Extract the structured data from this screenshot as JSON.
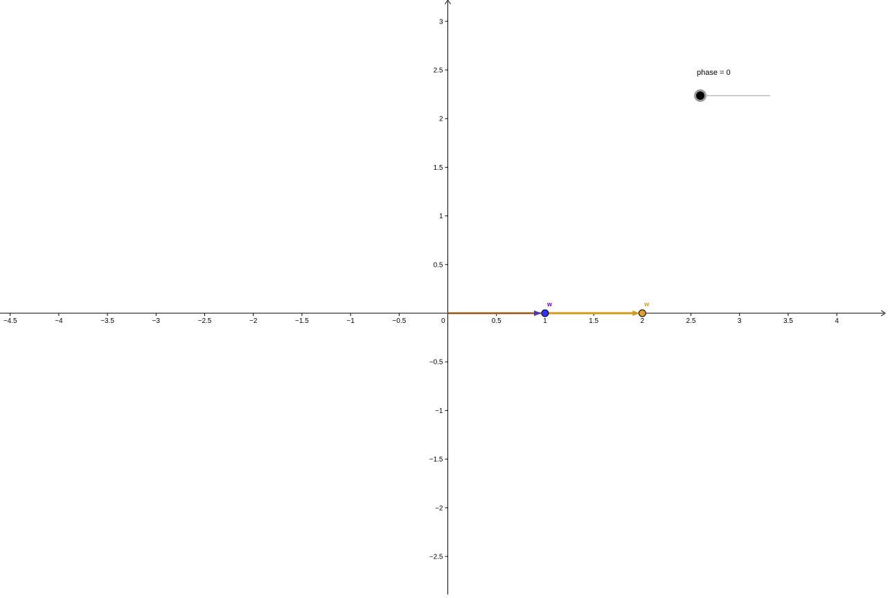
{
  "graph": {
    "x_ticks": [
      {
        "value": -4.5,
        "label": "−4.5"
      },
      {
        "value": -4,
        "label": "−4"
      },
      {
        "value": -3.5,
        "label": "−3.5"
      },
      {
        "value": -3,
        "label": "−3"
      },
      {
        "value": -2.5,
        "label": "−2.5"
      },
      {
        "value": -2,
        "label": "−2"
      },
      {
        "value": -1.5,
        "label": "−1.5"
      },
      {
        "value": -1,
        "label": "−1"
      },
      {
        "value": -0.5,
        "label": "−0.5"
      },
      {
        "value": 0.5,
        "label": "0.5"
      },
      {
        "value": 1,
        "label": "1"
      },
      {
        "value": 1.5,
        "label": "1.5"
      },
      {
        "value": 2,
        "label": "2"
      },
      {
        "value": 2.5,
        "label": "2.5"
      },
      {
        "value": 3,
        "label": "3"
      },
      {
        "value": 3.5,
        "label": "3.5"
      },
      {
        "value": 4,
        "label": "4"
      }
    ],
    "y_ticks": [
      {
        "value": 3,
        "label": "3"
      },
      {
        "value": 2.5,
        "label": "2.5"
      },
      {
        "value": 2,
        "label": "2"
      },
      {
        "value": 1.5,
        "label": "1.5"
      },
      {
        "value": 1,
        "label": "1"
      },
      {
        "value": 0.5,
        "label": "0.5"
      },
      {
        "value": -0.5,
        "label": "−0.5"
      },
      {
        "value": -1,
        "label": "−1"
      },
      {
        "value": -1.5,
        "label": "−1.5"
      },
      {
        "value": -2,
        "label": "−2"
      },
      {
        "value": -2.5,
        "label": "−2.5"
      }
    ],
    "origin_label": "0"
  },
  "objects": {
    "w_point": {
      "label": "w",
      "x": 1,
      "y": 0,
      "color": "#3333ff",
      "label_color": "#7700aa"
    },
    "v_point": {
      "label": "w",
      "x": 2,
      "y": 0,
      "color": "#e0a030",
      "label_color": "#d49a1a"
    },
    "vector_color": "#d49a1a"
  },
  "slider": {
    "caption": "phase = 0",
    "value_fraction": 0
  }
}
